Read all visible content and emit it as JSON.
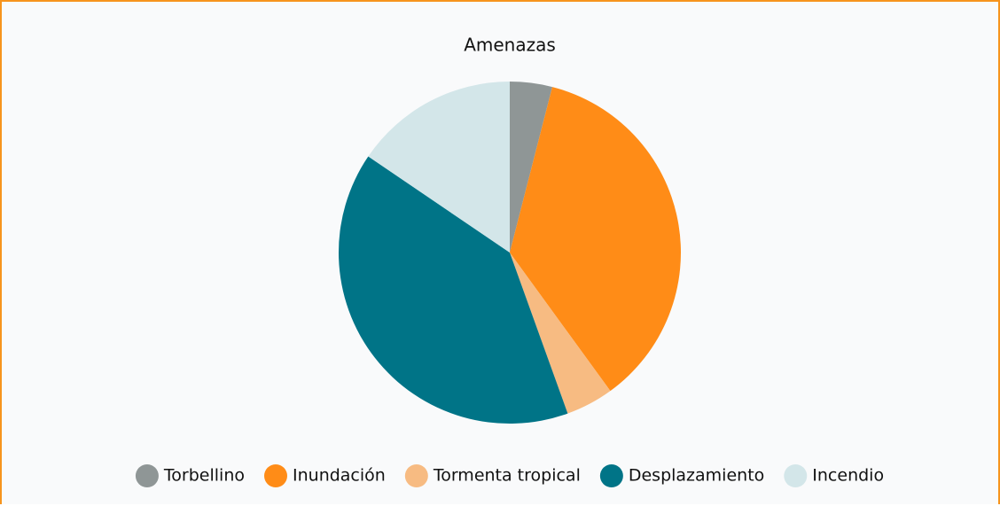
{
  "chart_data": {
    "type": "pie",
    "title": "Amenazas",
    "categories": [
      "Torbellino",
      "Inundación",
      "Tormenta tropical",
      "Desplazamiento",
      "Incendio"
    ],
    "values": [
      4,
      36,
      4.5,
      40,
      15.5
    ],
    "colors": [
      "#8f9696",
      "#ff8c17",
      "#f7bb82",
      "#007487",
      "#d3e6e9"
    ],
    "legend": "bottom"
  }
}
